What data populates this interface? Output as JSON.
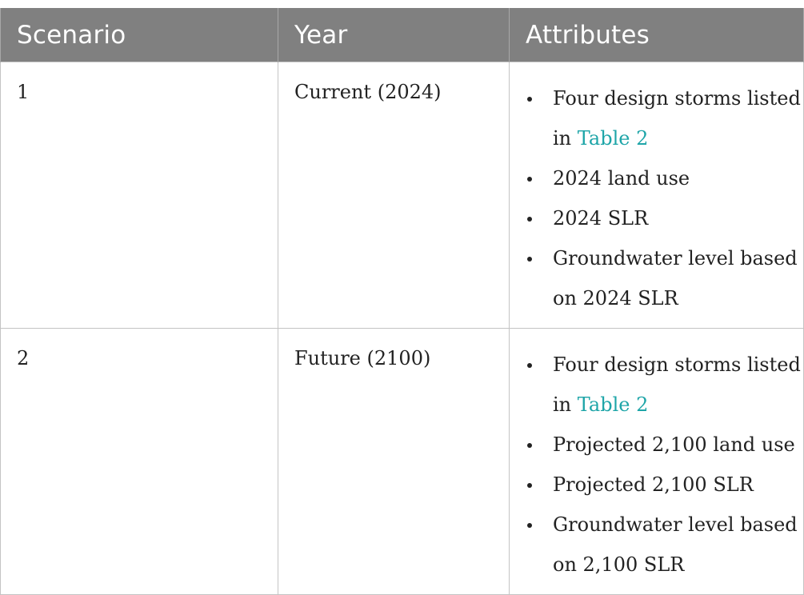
{
  "table": {
    "headers": [
      "Scenario",
      "Year",
      "Attributes"
    ],
    "rows": [
      {
        "scenario": "1",
        "year": "Current (2024)",
        "attributes": {
          "storms_prefix": "Four design storms listed in ",
          "storms_link": "Table 2",
          "items": [
            "2024 land use",
            "2024 SLR",
            "Groundwater level based on 2024 SLR"
          ]
        }
      },
      {
        "scenario": "2",
        "year": "Future (2100)",
        "attributes": {
          "storms_prefix": "Four design storms listed in ",
          "storms_link": "Table 2",
          "items": [
            "Projected 2,100 land use",
            "Projected 2,100 SLR",
            "Groundwater level based on 2,100 SLR"
          ]
        }
      }
    ]
  },
  "colors": {
    "header_bg": "#808080",
    "header_text": "#ffffff",
    "link": "#1ea5a8",
    "border": "#c4c4c4"
  }
}
